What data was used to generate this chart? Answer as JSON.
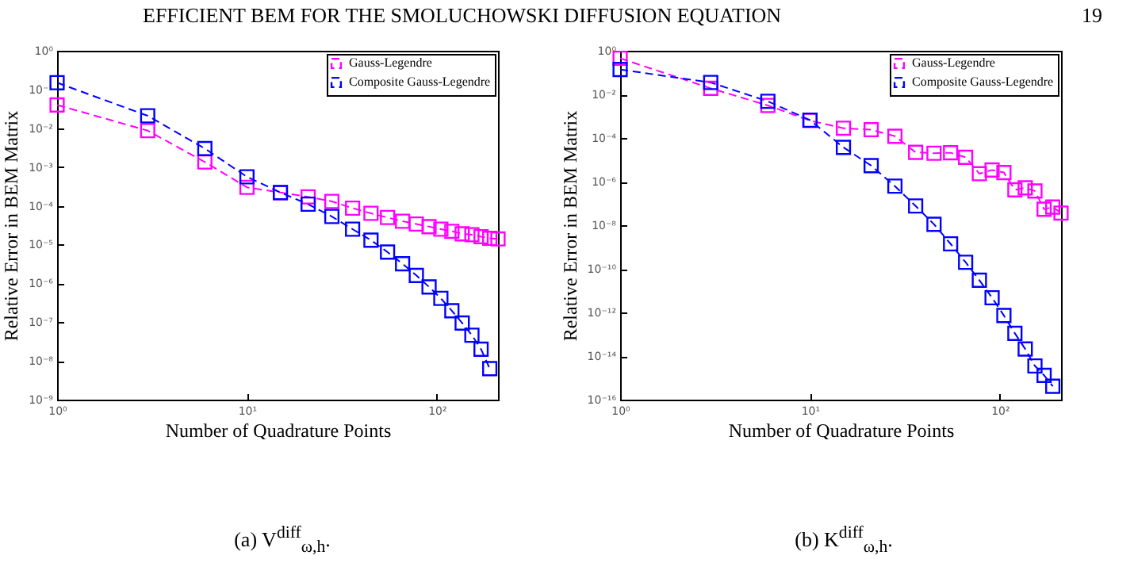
{
  "chart_data": [
    {
      "type": "line",
      "log": "xy",
      "xlabel": "Number of Quadrature Points",
      "ylabel": "Relative Error in BEM Matrix",
      "legend": "top right",
      "marker": "square",
      "line_style": "dashed",
      "annotations": [
        "EFFICIENT BEM FOR THE SMOLUCHOWSKI DIFFUSION EQUATION",
        "19",
        "(a) V$^{diff}$$_{ω,h}$."
      ],
      "xlim": [
        1,
        210
      ],
      "xticks": [
        {
          "value": 1,
          "label": "10⁰"
        },
        {
          "value": 10,
          "label": "10¹"
        },
        {
          "value": 100,
          "label": "10²"
        }
      ],
      "ylim": [
        1e-09,
        1
      ],
      "yticks": [
        {
          "value": 1e-09,
          "label": "10⁻⁹"
        },
        {
          "value": 1e-08,
          "label": "10⁻⁸"
        },
        {
          "value": 1e-07,
          "label": "10⁻⁷"
        },
        {
          "value": 1e-06,
          "label": "10⁻⁶"
        },
        {
          "value": 1e-05,
          "label": "10⁻⁵"
        },
        {
          "value": 0.0001,
          "label": "10⁻⁴"
        },
        {
          "value": 0.001,
          "label": "10⁻³"
        },
        {
          "value": 0.01,
          "label": "10⁻²"
        },
        {
          "value": 0.1,
          "label": "10⁻¹"
        },
        {
          "value": 1,
          "label": "10⁰"
        }
      ],
      "series": [
        {
          "name": "Gauss-Legendre",
          "color": "#ff00ff",
          "x": [
            1,
            3,
            6,
            10,
            15,
            21,
            28,
            36,
            45,
            55,
            66,
            78,
            91,
            105,
            120,
            136,
            153,
            171,
            190,
            210
          ],
          "values": [
            0.04,
            0.0087,
            0.00135,
            0.0003,
            0.00022,
            0.00017,
            0.00013,
            8.7e-05,
            6.4e-05,
            5e-05,
            4e-05,
            3.4e-05,
            2.9e-05,
            2.5e-05,
            2.2e-05,
            1.9e-05,
            1.8e-05,
            1.6e-05,
            1.45e-05,
            1.4e-05
          ]
        },
        {
          "name": "Composite Gauss-Legendre",
          "color": "#0000ff",
          "x": [
            1,
            3,
            6,
            10,
            15,
            21,
            28,
            36,
            45,
            55,
            66,
            78,
            91,
            105,
            120,
            136,
            153,
            171,
            190
          ],
          "values": [
            0.15,
            0.021,
            0.003,
            0.00056,
            0.00022,
            0.00011,
            5.3e-05,
            2.5e-05,
            1.3e-05,
            6.4e-06,
            3.2e-06,
            1.6e-06,
            8.1e-07,
            4.1e-07,
            1.96e-07,
            9.5e-08,
            4.6e-08,
            2e-08,
            6.3e-09
          ]
        }
      ]
    },
    {
      "type": "line",
      "log": "xy",
      "xlabel": "Number of Quadrature Points",
      "ylabel": "Relative Error in BEM Matrix",
      "legend": "top right",
      "marker": "square",
      "line_style": "dashed",
      "annotations": [
        "(b) K$^{diff}$$_{ω,h}$."
      ],
      "xlim": [
        1,
        210
      ],
      "xticks": [
        {
          "value": 1,
          "label": "10⁰"
        },
        {
          "value": 10,
          "label": "10¹"
        },
        {
          "value": 100,
          "label": "10²"
        }
      ],
      "ylim": [
        1e-16,
        1
      ],
      "yticks": [
        {
          "value": 1e-16,
          "label": "10⁻¹⁶"
        },
        {
          "value": 1e-14,
          "label": "10⁻¹⁴"
        },
        {
          "value": 1e-12,
          "label": "10⁻¹²"
        },
        {
          "value": 1e-10,
          "label": "10⁻¹⁰"
        },
        {
          "value": 1e-08,
          "label": "10⁻⁸"
        },
        {
          "value": 1e-06,
          "label": "10⁻⁶"
        },
        {
          "value": 0.0001,
          "label": "10⁻⁴"
        },
        {
          "value": 0.01,
          "label": "10⁻²"
        },
        {
          "value": 1,
          "label": "10⁰"
        }
      ],
      "series": [
        {
          "name": "Gauss-Legendre",
          "color": "#ff00ff",
          "x": [
            1,
            3,
            6,
            10,
            15,
            21,
            28,
            36,
            45,
            55,
            66,
            78,
            91,
            105,
            120,
            136,
            153,
            171,
            190,
            210
          ],
          "values": [
            0.45,
            0.019,
            0.0031,
            0.00063,
            0.00028,
            0.00024,
            0.00012,
            2.2e-05,
            2e-05,
            2.1e-05,
            1.3e-05,
            2.3e-06,
            3.4e-06,
            2.6e-06,
            4.2e-07,
            5.2e-07,
            3.7e-07,
            5.4e-08,
            6.8e-08,
            3.6e-08
          ]
        },
        {
          "name": "Composite Gauss-Legendre",
          "color": "#0000ff",
          "x": [
            1,
            3,
            6,
            10,
            15,
            21,
            28,
            36,
            45,
            55,
            66,
            78,
            91,
            105,
            120,
            136,
            153,
            171,
            190
          ],
          "values": [
            0.138,
            0.035,
            0.0048,
            0.00066,
            3.7e-05,
            5.4e-06,
            6.2e-07,
            7.6e-08,
            1.1e-08,
            1.4e-09,
            2e-10,
            3e-11,
            4.7e-12,
            7.2e-13,
            1.1e-13,
            2.1e-14,
            3.5e-15,
            1.3e-15,
            4.1e-16
          ]
        }
      ]
    }
  ]
}
